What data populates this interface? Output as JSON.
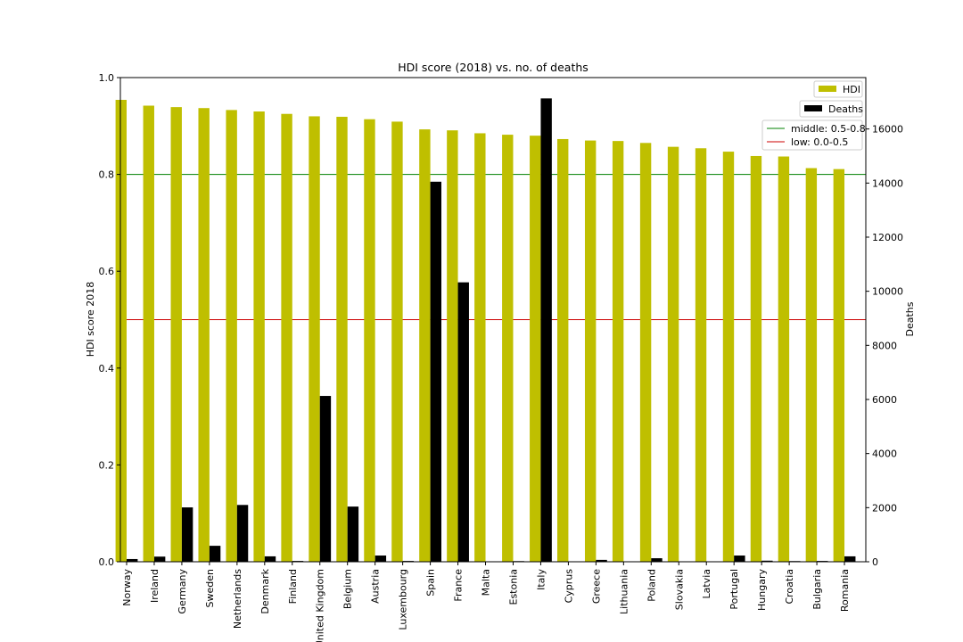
{
  "chart_data": {
    "type": "bar",
    "title": "HDI score (2018) vs. no. of deaths",
    "ylabel": "HDI score 2018",
    "y2label": "Deaths",
    "ylim": [
      0,
      1.0
    ],
    "y2lim": [
      0,
      17900
    ],
    "yticks": [
      "0.0",
      "0.2",
      "0.4",
      "0.6",
      "0.8",
      "1.0"
    ],
    "y2ticks": [
      "0",
      "2000",
      "4000",
      "6000",
      "8000",
      "10000",
      "12000",
      "14000",
      "16000"
    ],
    "categories": [
      "Norway",
      "Ireland",
      "Germany",
      "Sweden",
      "Netherlands",
      "Denmark",
      "Finland",
      "United Kingdom",
      "Belgium",
      "Austria",
      "Luxembourg",
      "Spain",
      "France",
      "Malta",
      "Estonia",
      "Italy",
      "Cyprus",
      "Greece",
      "Lithuania",
      "Poland",
      "Slovakia",
      "Latvia",
      "Portugal",
      "Hungary",
      "Croatia",
      "Bulgaria",
      "Romania"
    ],
    "series": [
      {
        "name": "HDI",
        "axis": "left",
        "color": "#bfbf00",
        "values": [
          0.954,
          0.942,
          0.939,
          0.937,
          0.933,
          0.93,
          0.925,
          0.92,
          0.919,
          0.914,
          0.909,
          0.893,
          0.891,
          0.885,
          0.882,
          0.88,
          0.873,
          0.87,
          0.869,
          0.865,
          0.857,
          0.854,
          0.847,
          0.838,
          0.837,
          0.813,
          0.811
        ]
      },
      {
        "name": "Deaths",
        "axis": "right",
        "color": "#000000",
        "values": [
          100,
          190,
          2010,
          590,
          2100,
          200,
          30,
          6130,
          2040,
          230,
          30,
          14050,
          10330,
          0,
          24,
          17130,
          0,
          70,
          0,
          130,
          0,
          0,
          230,
          40,
          25,
          30,
          200
        ]
      }
    ],
    "hlines": [
      {
        "name": "middle: 0.5-0.8",
        "y": 0.8,
        "color": "#008000"
      },
      {
        "name": "low: 0.0-0.5",
        "y": 0.5,
        "color": "#cc0000"
      }
    ],
    "legend_placement": "top-right",
    "grid": false
  }
}
